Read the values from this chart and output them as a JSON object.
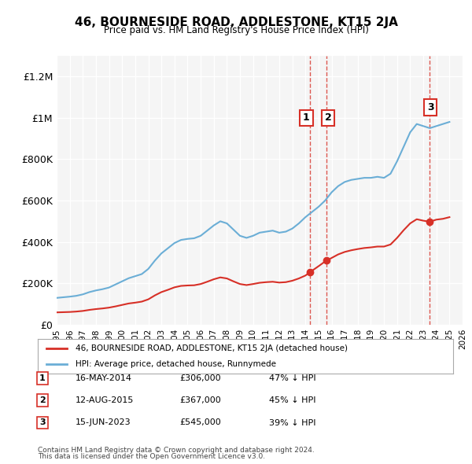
{
  "title": "46, BOURNESIDE ROAD, ADDLESTONE, KT15 2JA",
  "subtitle": "Price paid vs. HM Land Registry's House Price Index (HPI)",
  "background_color": "#ffffff",
  "plot_bg_color": "#f5f5f5",
  "grid_color": "#ffffff",
  "hpi_color": "#6baed6",
  "price_color": "#d73027",
  "ylim": [
    0,
    1300000
  ],
  "yticks": [
    0,
    200000,
    400000,
    600000,
    800000,
    1000000,
    1200000
  ],
  "ytick_labels": [
    "£0",
    "£200K",
    "£400K",
    "£600K",
    "£800K",
    "£1M",
    "£1.2M"
  ],
  "transactions": [
    {
      "label": "1",
      "date": "16-MAY-2014",
      "price": 306000,
      "pct": "47%",
      "x": 2014.37
    },
    {
      "label": "2",
      "date": "12-AUG-2015",
      "price": 367000,
      "pct": "45%",
      "x": 2015.62
    },
    {
      "label": "3",
      "date": "15-JUN-2023",
      "price": 545000,
      "pct": "39%",
      "x": 2023.45
    }
  ],
  "legend_line1": "46, BOURNESIDE ROAD, ADDLESTONE, KT15 2JA (detached house)",
  "legend_line2": "HPI: Average price, detached house, Runnymede",
  "footer1": "Contains HM Land Registry data © Crown copyright and database right 2024.",
  "footer2": "This data is licensed under the Open Government Licence v3.0.",
  "xmin": 1995,
  "xmax": 2026,
  "hpi_data": {
    "years": [
      1995.0,
      1995.5,
      1996.0,
      1996.5,
      1997.0,
      1997.5,
      1998.0,
      1998.5,
      1999.0,
      1999.5,
      2000.0,
      2000.5,
      2001.0,
      2001.5,
      2002.0,
      2002.5,
      2003.0,
      2003.5,
      2004.0,
      2004.5,
      2005.0,
      2005.5,
      2006.0,
      2006.5,
      2007.0,
      2007.5,
      2008.0,
      2008.5,
      2009.0,
      2009.5,
      2010.0,
      2010.5,
      2011.0,
      2011.5,
      2012.0,
      2012.5,
      2013.0,
      2013.5,
      2014.0,
      2014.5,
      2015.0,
      2015.5,
      2016.0,
      2016.5,
      2017.0,
      2017.5,
      2018.0,
      2018.5,
      2019.0,
      2019.5,
      2020.0,
      2020.5,
      2021.0,
      2021.5,
      2022.0,
      2022.5,
      2023.0,
      2023.5,
      2024.0,
      2024.5,
      2025.0
    ],
    "values": [
      130000,
      133000,
      136000,
      140000,
      147000,
      158000,
      166000,
      172000,
      180000,
      195000,
      210000,
      225000,
      235000,
      245000,
      270000,
      310000,
      345000,
      370000,
      395000,
      410000,
      415000,
      418000,
      430000,
      455000,
      480000,
      500000,
      490000,
      460000,
      430000,
      420000,
      430000,
      445000,
      450000,
      455000,
      445000,
      450000,
      465000,
      490000,
      520000,
      545000,
      570000,
      600000,
      640000,
      670000,
      690000,
      700000,
      705000,
      710000,
      710000,
      715000,
      710000,
      730000,
      790000,
      860000,
      930000,
      970000,
      960000,
      950000,
      960000,
      970000,
      980000
    ]
  },
  "price_data": {
    "years": [
      1995.0,
      1995.5,
      1996.0,
      1996.5,
      1997.0,
      1997.5,
      1998.0,
      1998.5,
      1999.0,
      1999.5,
      2000.0,
      2000.5,
      2001.0,
      2001.5,
      2002.0,
      2002.5,
      2003.0,
      2003.5,
      2004.0,
      2004.5,
      2005.0,
      2005.5,
      2006.0,
      2006.5,
      2007.0,
      2007.5,
      2008.0,
      2008.5,
      2009.0,
      2009.5,
      2010.0,
      2010.5,
      2011.0,
      2011.5,
      2012.0,
      2012.5,
      2013.0,
      2013.5,
      2014.0,
      2014.5,
      2015.0,
      2015.5,
      2016.0,
      2016.5,
      2017.0,
      2017.5,
      2018.0,
      2018.5,
      2019.0,
      2019.5,
      2020.0,
      2020.5,
      2021.0,
      2021.5,
      2022.0,
      2022.5,
      2023.0,
      2023.5,
      2024.0,
      2024.5,
      2025.0
    ],
    "values": [
      60000,
      61000,
      62000,
      64000,
      67000,
      72000,
      76000,
      79000,
      83000,
      89000,
      96000,
      103000,
      107000,
      112000,
      123000,
      142000,
      158000,
      169000,
      181000,
      188000,
      190000,
      191000,
      197000,
      208000,
      220000,
      229000,
      224000,
      210000,
      197000,
      192000,
      197000,
      203000,
      206000,
      208000,
      204000,
      206000,
      213000,
      224000,
      238000,
      261000,
      283000,
      306000,
      323000,
      340000,
      352000,
      360000,
      366000,
      371000,
      374000,
      378000,
      378000,
      388000,
      420000,
      457000,
      490000,
      510000,
      503000,
      498000,
      508000,
      512000,
      520000
    ]
  }
}
